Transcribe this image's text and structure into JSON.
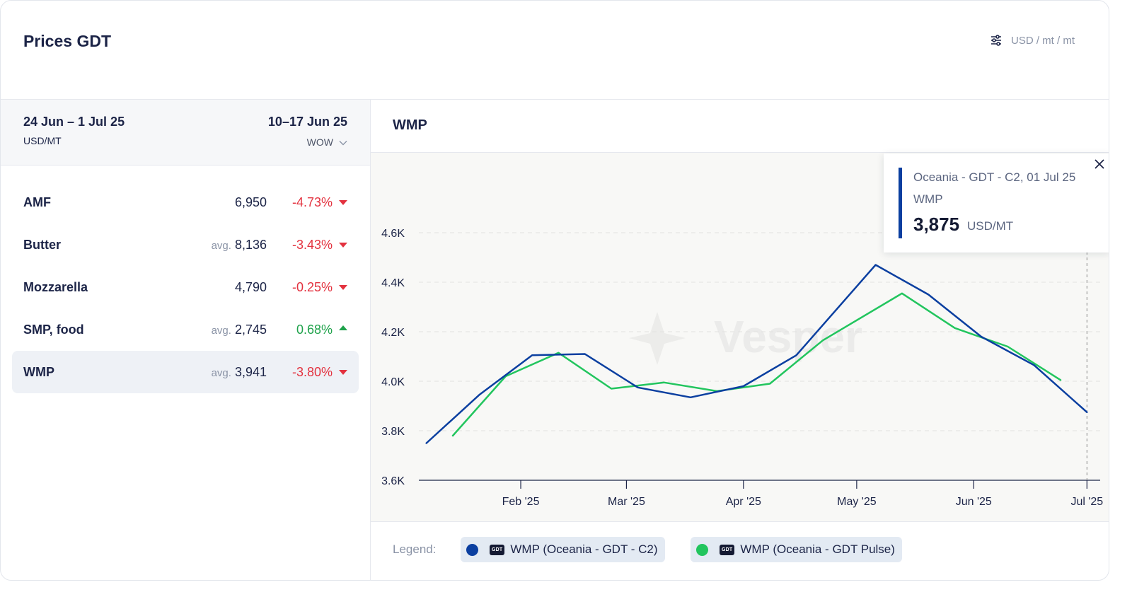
{
  "header": {
    "title": "Prices GDT",
    "units": "USD / mt / mt"
  },
  "panel": {
    "period": "24 Jun – 1 Jul 25",
    "unit": "USD/MT",
    "compare_period": "10–17 Jun 25",
    "compare_mode": "WOW"
  },
  "products": [
    {
      "name": "AMF",
      "avg": "",
      "value": "6,950",
      "change": "-4.73%",
      "direction": "down"
    },
    {
      "name": "Butter",
      "avg": "avg.",
      "value": "8,136",
      "change": "-3.43%",
      "direction": "down"
    },
    {
      "name": "Mozzarella",
      "avg": "",
      "value": "4,790",
      "change": "-0.25%",
      "direction": "down"
    },
    {
      "name": "SMP, food",
      "avg": "avg.",
      "value": "2,745",
      "change": "0.68%",
      "direction": "up"
    },
    {
      "name": "WMP",
      "avg": "avg.",
      "value": "3,941",
      "change": "-3.80%",
      "direction": "down"
    }
  ],
  "chart": {
    "title": "WMP",
    "watermark": "Vesper"
  },
  "legend": {
    "label": "Legend:",
    "badge": "GDT",
    "items": [
      {
        "label": "WMP (Oceania - GDT - C2)",
        "color": "#0b3fa0"
      },
      {
        "label": "WMP (Oceania - GDT Pulse)",
        "color": "#22c55e"
      }
    ]
  },
  "tooltip": {
    "series": "Oceania - GDT - C2, 01 Jul 25",
    "name": "WMP",
    "value": "3,875",
    "unit": "USD/MT"
  },
  "chart_data": {
    "type": "line",
    "title": "WMP",
    "xlabel": "",
    "ylabel": "",
    "ylim": [
      3600,
      4700
    ],
    "yticks": [
      3600,
      3800,
      4000,
      4200,
      4400,
      4600
    ],
    "ytick_labels": [
      "3.6K",
      "3.8K",
      "4.0K",
      "4.2K",
      "4.4K",
      "4.6K"
    ],
    "xlim": [
      "2025-01-05",
      "2025-07-03"
    ],
    "xticks": [
      "2025-02-01",
      "2025-03-01",
      "2025-04-01",
      "2025-05-01",
      "2025-06-01",
      "2025-07-01"
    ],
    "xtick_labels": [
      "Feb '25",
      "Mar '25",
      "Apr '25",
      "May '25",
      "Jun '25",
      "Jul '25"
    ],
    "grid": true,
    "legend_position": "bottom",
    "series": [
      {
        "name": "WMP (Oceania - GDT - C2)",
        "color": "#0b3fa0",
        "x": [
          "2025-01-07",
          "2025-01-21",
          "2025-02-04",
          "2025-02-18",
          "2025-03-04",
          "2025-03-18",
          "2025-04-01",
          "2025-04-15",
          "2025-05-06",
          "2025-05-20",
          "2025-06-03",
          "2025-06-17",
          "2025-07-01"
        ],
        "y": [
          3750,
          3945,
          4105,
          4110,
          3975,
          3935,
          3980,
          4105,
          4470,
          4350,
          4180,
          4065,
          3875
        ]
      },
      {
        "name": "WMP (Oceania - GDT Pulse)",
        "color": "#22c55e",
        "x": [
          "2025-01-14",
          "2025-01-28",
          "2025-02-11",
          "2025-02-25",
          "2025-03-11",
          "2025-03-25",
          "2025-04-08",
          "2025-04-22",
          "2025-05-13",
          "2025-05-27",
          "2025-06-10",
          "2025-06-24"
        ],
        "y": [
          3780,
          4020,
          4115,
          3970,
          3995,
          3960,
          3990,
          4165,
          4355,
          4215,
          4140,
          4005
        ]
      }
    ],
    "highlight": {
      "series": "WMP (Oceania - GDT - C2)",
      "x": "2025-07-01",
      "y": 3875
    }
  }
}
